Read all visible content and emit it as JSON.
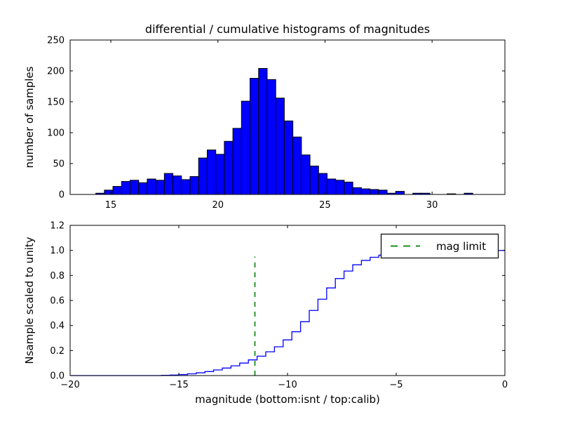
{
  "figure": {
    "title": "differential / cumulative histograms of magnitudes",
    "xlabel": "magnitude (bottom:isnt / top:calib)",
    "background_color": "#ffffff"
  },
  "colors": {
    "bar_fill": "#0000ff",
    "bar_edge": "#000000",
    "curve": "#0000ff",
    "mag_limit_line": "#008000",
    "axis": "#000000",
    "legend_background": "#ffffff"
  },
  "legend": {
    "label": "mag limit",
    "position": "upper right"
  },
  "chart_data": [
    {
      "type": "bar",
      "subplot": "top",
      "title": "differential / cumulative histograms of magnitudes",
      "ylabel": "number of samples",
      "xlim": [
        13.1,
        33.4
      ],
      "ylim": [
        0,
        250
      ],
      "xticks": [
        "15",
        "20",
        "25",
        "30"
      ],
      "xtick_values": [
        15,
        20,
        25,
        30
      ],
      "yticks": [
        "0",
        "50",
        "100",
        "150",
        "200",
        "250"
      ],
      "ytick_values": [
        0,
        50,
        100,
        150,
        200,
        250
      ],
      "bin_start": 14.3,
      "bin_width": 0.4,
      "values": [
        2,
        7,
        13,
        21,
        23,
        19,
        25,
        23,
        34,
        30,
        24,
        29,
        59,
        72,
        65,
        86,
        107,
        151,
        188,
        204,
        186,
        156,
        119,
        93,
        64,
        46,
        34,
        25,
        23,
        20,
        11,
        9,
        8,
        7,
        2,
        5,
        0,
        2,
        2,
        0,
        0,
        1,
        0,
        2
      ],
      "grid": false
    },
    {
      "type": "line",
      "subplot": "bottom",
      "style": "step-post",
      "ylabel": "Nsample scaled to unity",
      "xlabel": "magnitude (bottom:isnt / top:calib)",
      "xlim": [
        -20,
        0
      ],
      "ylim": [
        0,
        1.2
      ],
      "xticks": [
        "−20",
        "−15",
        "−10",
        "−5",
        "0"
      ],
      "xtick_values": [
        -20,
        -15,
        -10,
        -5,
        0
      ],
      "yticks": [
        "0.0",
        "0.2",
        "0.4",
        "0.6",
        "0.8",
        "1.0",
        "1.2"
      ],
      "ytick_values": [
        0,
        0.2,
        0.4,
        0.6,
        0.8,
        1.0,
        1.2
      ],
      "x": [
        -20,
        -15.8,
        -15.4,
        -15.0,
        -14.6,
        -14.2,
        -13.8,
        -13.4,
        -13.0,
        -12.6,
        -12.2,
        -11.8,
        -11.4,
        -11.0,
        -10.6,
        -10.2,
        -9.8,
        -9.4,
        -9.0,
        -8.6,
        -8.2,
        -7.8,
        -7.4,
        -7.0,
        -6.6,
        -6.2,
        -5.8,
        -5.4,
        -5.0,
        -4.6,
        -4.2,
        -3.8,
        -3.4,
        -3.0,
        -2.6,
        -2.2,
        -1.8,
        -1.4,
        -1.0,
        -0.6,
        -0.2,
        0
      ],
      "y": [
        0,
        0.002,
        0.004,
        0.008,
        0.014,
        0.022,
        0.032,
        0.045,
        0.06,
        0.078,
        0.1,
        0.125,
        0.155,
        0.19,
        0.23,
        0.285,
        0.35,
        0.43,
        0.52,
        0.61,
        0.7,
        0.775,
        0.835,
        0.885,
        0.92,
        0.945,
        0.962,
        0.973,
        0.981,
        0.986,
        0.99,
        0.992,
        0.994,
        0.995,
        0.996,
        0.997,
        0.9975,
        0.998,
        0.9985,
        0.999,
        0.9995,
        1.0
      ],
      "vline": {
        "x": -11.5,
        "y_min": 0,
        "y_max": 0.95,
        "label": "mag limit",
        "linestyle": "dashed"
      },
      "legend_entries": [
        "mag limit"
      ],
      "grid": false
    }
  ]
}
